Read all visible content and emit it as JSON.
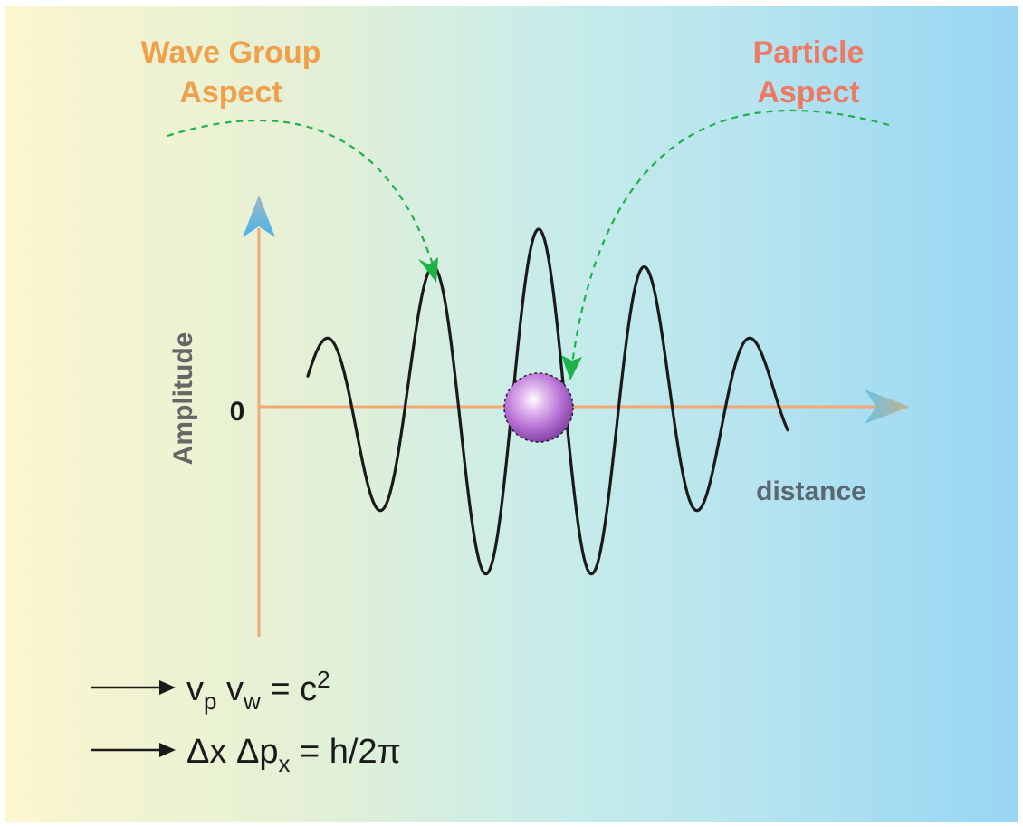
{
  "title_left": {
    "line1": "Wave Group",
    "line2": "Aspect"
  },
  "title_right": {
    "line1": "Particle",
    "line2": "Aspect"
  },
  "axes": {
    "y_label": "Amplitude",
    "x_label": "distance",
    "zero_label": "0"
  },
  "equations": {
    "eq1": {
      "a": "v",
      "a_sub": "p",
      "b": " v",
      "b_sub": "w",
      "rest": " = c",
      "sup": "2"
    },
    "eq2": {
      "a": "Δx Δp",
      "a_sub": "x",
      "rest": " = h/2π"
    }
  },
  "colors": {
    "wave_group_label": "#f0a04a",
    "particle_label": "#ec7a65",
    "axis": "#f4a872",
    "arrow_tip": "#6ab5d8",
    "dashed_arrow": "#1db24a",
    "wave": "#1a1a1a",
    "particle_sphere": "#b974d6"
  }
}
